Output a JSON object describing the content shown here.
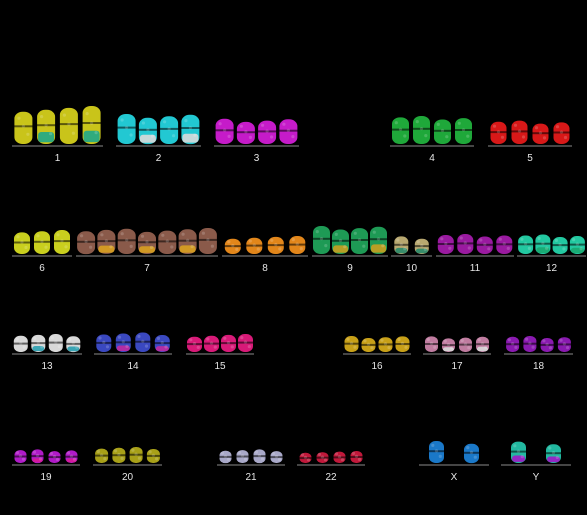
{
  "background": "#000000",
  "karyotype": {
    "groups": [
      {
        "label": "1",
        "count": 4,
        "color": "#c9c41a",
        "accent": "#1fa88a"
      },
      {
        "label": "2",
        "count": 4,
        "color": "#22c8d2",
        "accent": "#d9d9d9"
      },
      {
        "label": "3",
        "count": 4,
        "color": "#c51bc9",
        "accent": "#c51bc9"
      },
      {
        "label": "4",
        "count": 4,
        "color": "#1fa83a",
        "accent": "#1fa83a"
      },
      {
        "label": "5",
        "count": 4,
        "color": "#d81818",
        "accent": "#d81818"
      },
      {
        "label": "6",
        "count": 3,
        "color": "#c9cf1e",
        "accent": "#c9cf1e"
      },
      {
        "label": "7",
        "count": 7,
        "color": "#8a5a4a",
        "accent": "#d8a020"
      },
      {
        "label": "8",
        "count": 4,
        "color": "#e2861a",
        "accent": "#e2861a"
      },
      {
        "label": "9",
        "count": 4,
        "color": "#1e9a55",
        "accent": "#c8a020"
      },
      {
        "label": "10",
        "count": 2,
        "color": "#b8a870",
        "accent": "#2a8a6a"
      },
      {
        "label": "11",
        "count": 4,
        "color": "#9a1aa0",
        "accent": "#9a1aa0"
      },
      {
        "label": "12",
        "count": 4,
        "color": "#22c8a0",
        "accent": "#1aa870"
      },
      {
        "label": "13",
        "count": 4,
        "color": "#d8d8d8",
        "accent": "#2aa0b0"
      },
      {
        "label": "14",
        "count": 4,
        "color": "#3a48c0",
        "accent": "#c02aa0"
      },
      {
        "label": "15",
        "count": 4,
        "color": "#d81a78",
        "accent": "#d81a78"
      },
      {
        "label": "16",
        "count": 4,
        "color": "#c8a018",
        "accent": "#c8a018"
      },
      {
        "label": "17",
        "count": 4,
        "color": "#c07ca0",
        "accent": "#d8d8d8"
      },
      {
        "label": "18",
        "count": 4,
        "color": "#8a1ab0",
        "accent": "#8a1ab0"
      },
      {
        "label": "19",
        "count": 4,
        "color": "#b01ac8",
        "accent": "#d81a98"
      },
      {
        "label": "20",
        "count": 4,
        "color": "#a8a018",
        "accent": "#a8a018"
      },
      {
        "label": "21",
        "count": 4,
        "color": "#a8a8c8",
        "accent": "#a8a8c8"
      },
      {
        "label": "22",
        "count": 4,
        "color": "#c0183a",
        "accent": "#c0183a"
      },
      {
        "label": "X",
        "count": 2,
        "color": "#1a78c8",
        "accent": "#1a78c8"
      },
      {
        "label": "Y",
        "count": 2,
        "color": "#22b8a0",
        "accent": "#a01ac8"
      }
    ]
  }
}
